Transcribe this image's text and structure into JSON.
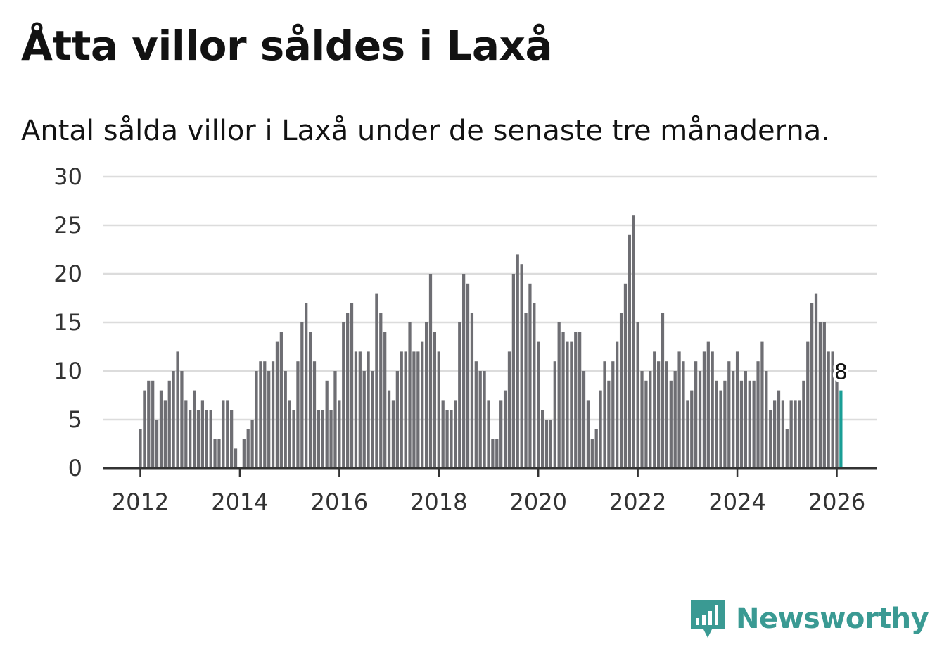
{
  "title": "Åtta villor såldes i Laxå",
  "subtitle": "Antal sålda villor i Laxå under de senaste tre månaderna.",
  "brand": {
    "name": "Newsworthy",
    "color": "#3a9a93",
    "icon": "newsworthy-logo-icon"
  },
  "colors": {
    "bar": "#6e6e73",
    "highlight": "#1a9e96",
    "grid": "#dcdcdc",
    "axis": "#333333"
  },
  "chart_data": {
    "type": "bar",
    "title": "Åtta villor såldes i Laxå",
    "xlabel": "",
    "ylabel": "",
    "ylim": [
      0,
      30
    ],
    "yticks": [
      0,
      5,
      10,
      15,
      20,
      25,
      30
    ],
    "xticks": [
      "2012",
      "2014",
      "2016",
      "2018",
      "2020",
      "2022",
      "2024",
      "2026"
    ],
    "x_start": "2012-01",
    "frequency": "monthly",
    "values": [
      4,
      8,
      9,
      9,
      5,
      8,
      7,
      9,
      10,
      12,
      10,
      7,
      6,
      8,
      6,
      7,
      6,
      6,
      3,
      3,
      7,
      7,
      6,
      2,
      0,
      3,
      4,
      5,
      10,
      11,
      11,
      10,
      11,
      13,
      14,
      10,
      7,
      6,
      11,
      15,
      17,
      14,
      11,
      6,
      6,
      9,
      6,
      10,
      7,
      15,
      16,
      17,
      12,
      12,
      10,
      12,
      10,
      18,
      16,
      14,
      8,
      7,
      10,
      12,
      12,
      15,
      12,
      12,
      13,
      15,
      20,
      14,
      12,
      7,
      6,
      6,
      7,
      15,
      20,
      19,
      16,
      11,
      10,
      10,
      7,
      3,
      3,
      7,
      8,
      12,
      20,
      22,
      21,
      16,
      19,
      17,
      13,
      6,
      5,
      5,
      11,
      15,
      14,
      13,
      13,
      14,
      14,
      10,
      7,
      3,
      4,
      8,
      11,
      9,
      11,
      13,
      16,
      19,
      24,
      26,
      15,
      10,
      9,
      10,
      12,
      11,
      16,
      11,
      9,
      10,
      12,
      11,
      7,
      8,
      11,
      10,
      12,
      13,
      12,
      9,
      8,
      9,
      11,
      10,
      12,
      9,
      10,
      9,
      9,
      11,
      13,
      10,
      6,
      7,
      8,
      7,
      4,
      7,
      7,
      7,
      9,
      13,
      17,
      18,
      15,
      15,
      12,
      12,
      10,
      8
    ],
    "highlight": {
      "label": "8",
      "value": 8,
      "index": 169
    }
  }
}
